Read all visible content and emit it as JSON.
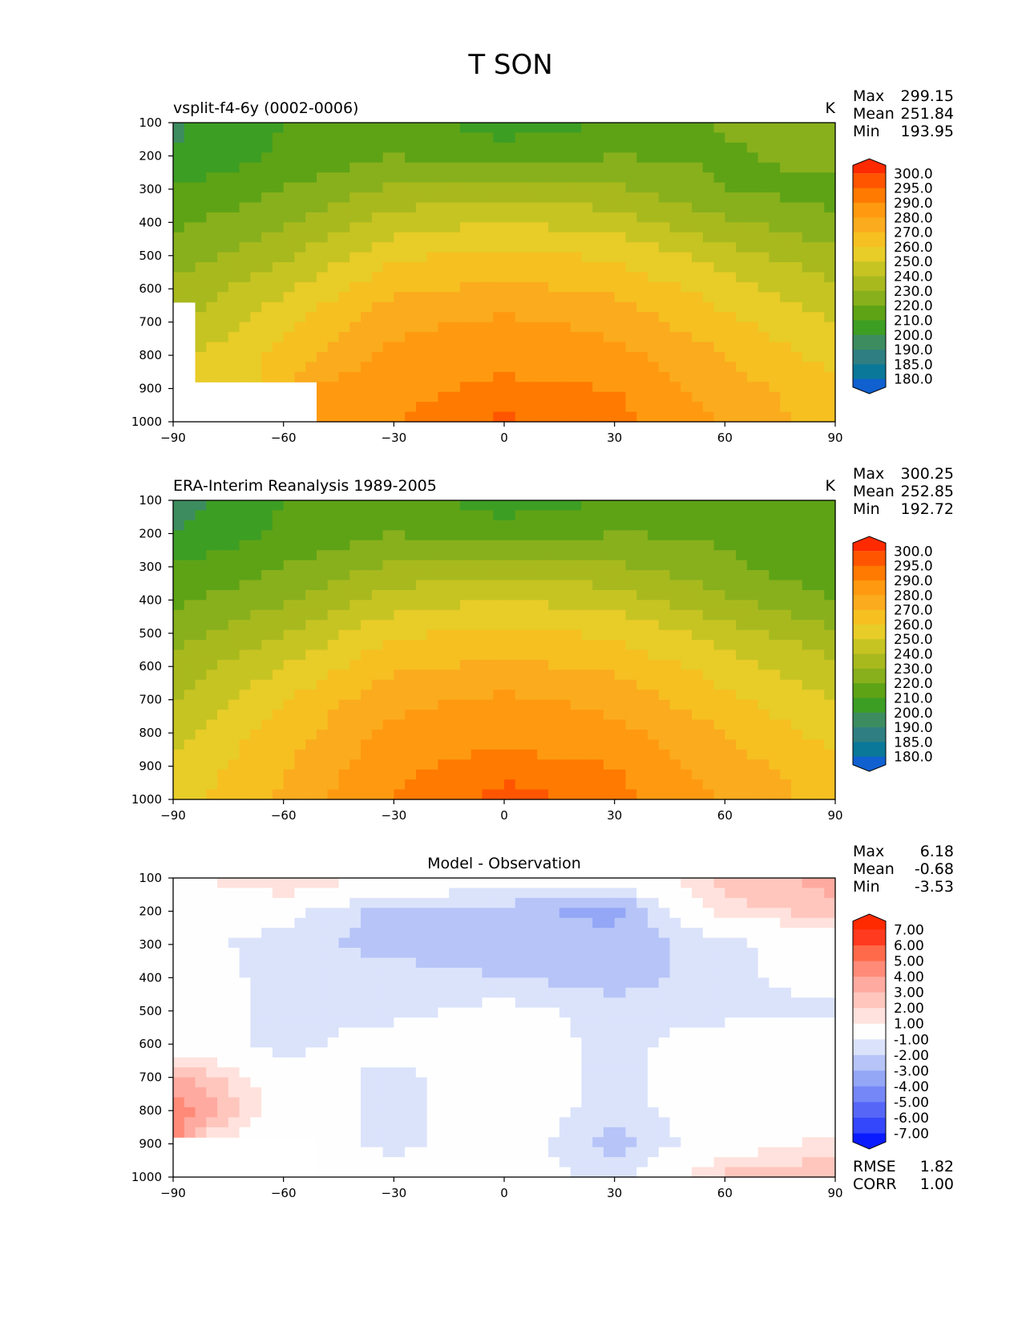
{
  "figure_title": "T SON",
  "chart_data": [
    {
      "type": "heatmap",
      "title": "vsplit-f4-6y (0002-0006)",
      "units": "K",
      "stats": {
        "max": "299.15",
        "mean": "251.84",
        "min": "193.95"
      },
      "stat_labels": [
        "Max",
        "Mean",
        "Min"
      ],
      "x_ticks": [
        "−90",
        "−60",
        "−30",
        "0",
        "30",
        "60",
        "90"
      ],
      "y_ticks": [
        "100",
        "200",
        "300",
        "400",
        "500",
        "600",
        "700",
        "800",
        "900",
        "1000"
      ],
      "xlim": [
        -90,
        90
      ],
      "ylim": [
        1000,
        100
      ],
      "colorbar_levels": [
        "300.0",
        "295.0",
        "290.0",
        "280.0",
        "270.0",
        "260.0",
        "250.0",
        "240.0",
        "230.0",
        "220.0",
        "210.0",
        "200.0",
        "190.0",
        "185.0",
        "180.0"
      ],
      "colorbar_extend": "both",
      "missing_region": "below ~650 hPa near 90S and below ~870 hPa from 85S to 50S",
      "contour_field_approx": {
        "lat": [
          -90,
          -60,
          -30,
          0,
          30,
          60,
          90
        ],
        "plev": [
          100,
          200,
          300,
          400,
          500,
          600,
          700,
          800,
          900,
          1000
        ],
        "values": [
          [
            198,
            210,
            215,
            205,
            210,
            222,
            222
          ],
          [
            200,
            212,
            220,
            215,
            220,
            218,
            225
          ],
          [
            210,
            220,
            232,
            235,
            232,
            220,
            215
          ],
          [
            218,
            228,
            245,
            250,
            245,
            232,
            222
          ],
          [
            225,
            238,
            258,
            263,
            258,
            245,
            232
          ],
          [
            232,
            248,
            268,
            272,
            268,
            255,
            242
          ],
          [
            238,
            258,
            277,
            282,
            277,
            262,
            250
          ],
          [
            246,
            263,
            283,
            287,
            283,
            270,
            256
          ],
          [
            null,
            null,
            287,
            292,
            290,
            275,
            262
          ],
          [
            null,
            null,
            290,
            296,
            293,
            279,
            265
          ]
        ]
      }
    },
    {
      "type": "heatmap",
      "title": "ERA-Interim Reanalysis 1989-2005",
      "units": "K",
      "stats": {
        "max": "300.25",
        "mean": "252.85",
        "min": "192.72"
      },
      "stat_labels": [
        "Max",
        "Mean",
        "Min"
      ],
      "x_ticks": [
        "−90",
        "−60",
        "−30",
        "0",
        "30",
        "60",
        "90"
      ],
      "y_ticks": [
        "100",
        "200",
        "300",
        "400",
        "500",
        "600",
        "700",
        "800",
        "900",
        "1000"
      ],
      "xlim": [
        -90,
        90
      ],
      "ylim": [
        1000,
        100
      ],
      "colorbar_levels": [
        "300.0",
        "295.0",
        "290.0",
        "280.0",
        "270.0",
        "260.0",
        "250.0",
        "240.0",
        "230.0",
        "220.0",
        "210.0",
        "200.0",
        "190.0",
        "185.0",
        "180.0"
      ],
      "colorbar_extend": "both",
      "contour_field_approx": {
        "lat": [
          -90,
          -60,
          -30,
          0,
          30,
          60,
          90
        ],
        "plev": [
          100,
          200,
          300,
          400,
          500,
          600,
          700,
          800,
          900,
          1000
        ],
        "values": [
          [
            195,
            210,
            215,
            205,
            210,
            218,
            218
          ],
          [
            200,
            212,
            220,
            215,
            220,
            218,
            220
          ],
          [
            210,
            220,
            232,
            235,
            232,
            222,
            212
          ],
          [
            218,
            228,
            245,
            250,
            245,
            232,
            220
          ],
          [
            226,
            240,
            258,
            263,
            258,
            245,
            232
          ],
          [
            233,
            250,
            268,
            272,
            268,
            255,
            242
          ],
          [
            240,
            260,
            277,
            282,
            277,
            262,
            250
          ],
          [
            247,
            265,
            283,
            288,
            283,
            270,
            256
          ],
          [
            252,
            269,
            288,
            293,
            290,
            275,
            262
          ],
          [
            256,
            272,
            291,
            297,
            293,
            279,
            266
          ]
        ]
      }
    },
    {
      "type": "heatmap",
      "title": "Model - Observation",
      "units": "",
      "stats": {
        "max": "6.18",
        "mean": "-0.68",
        "min": "-3.53"
      },
      "stat_labels": [
        "Max",
        "Mean",
        "Min"
      ],
      "error_stats": {
        "rmse": "1.82",
        "corr": "1.00"
      },
      "error_labels": [
        "RMSE",
        "CORR"
      ],
      "x_ticks": [
        "−90",
        "−60",
        "−30",
        "0",
        "30",
        "60",
        "90"
      ],
      "y_ticks": [
        "100",
        "200",
        "300",
        "400",
        "500",
        "600",
        "700",
        "800",
        "900",
        "1000"
      ],
      "xlim": [
        -90,
        90
      ],
      "ylim": [
        1000,
        100
      ],
      "colorbar_levels": [
        "7.00",
        "6.00",
        "5.00",
        "4.00",
        "3.00",
        "2.00",
        "1.00",
        "-1.00",
        "-2.00",
        "-3.00",
        "-4.00",
        "-5.00",
        "-6.00",
        "-7.00"
      ],
      "colorbar_extend": "both",
      "contour_field_approx": {
        "lat": [
          -90,
          -60,
          -30,
          0,
          30,
          60,
          90
        ],
        "plev": [
          100,
          200,
          300,
          400,
          500,
          600,
          700,
          800,
          900,
          1000
        ],
        "values": [
          [
            0.5,
            2.5,
            0.5,
            0,
            -0.5,
            2.5,
            3.5
          ],
          [
            -0.5,
            -0.5,
            -2.5,
            -2.5,
            -3.5,
            1.5,
            2.5
          ],
          [
            -0.5,
            -1.5,
            -2.5,
            -2.5,
            -2.5,
            -1.5,
            0
          ],
          [
            0,
            -1.5,
            -1.5,
            -2,
            -2.5,
            -1.5,
            0
          ],
          [
            0,
            -1.5,
            -1.5,
            -0.5,
            -1.5,
            -1.5,
            -1.5
          ],
          [
            0,
            -1.5,
            0,
            0,
            -1.5,
            0,
            0
          ],
          [
            3.5,
            0,
            -1.5,
            0,
            -1.5,
            0,
            0
          ],
          [
            5,
            0,
            -1.5,
            0,
            -1.5,
            0,
            0
          ],
          [
            null,
            0,
            -1.5,
            0,
            -2.5,
            0,
            1.5
          ],
          [
            null,
            0,
            0,
            0,
            -1.5,
            2.5,
            3
          ]
        ]
      }
    }
  ],
  "colors": {
    "abs_ramp": [
      "#ff2a00",
      "#ff5500",
      "#ff7a00",
      "#ff9a10",
      "#fbab1e",
      "#f6c020",
      "#e8cc28",
      "#c6c422",
      "#a8b91e",
      "#88b01c",
      "#5ea316",
      "#3d9e24",
      "#3d8c60",
      "#2f7f82",
      "#0a7899",
      "#1060d0",
      "#0038ff"
    ],
    "diff_ramp": [
      "#ff2a00",
      "#ff3a1e",
      "#ff6a4a",
      "#ff8a78",
      "#ffaaa0",
      "#ffc6bd",
      "#ffe2dd",
      "#fefefe",
      "#dbe3fb",
      "#b6c4f8",
      "#94a6f6",
      "#7587f6",
      "#5667f8",
      "#3447fb",
      "#0a1cff"
    ]
  }
}
